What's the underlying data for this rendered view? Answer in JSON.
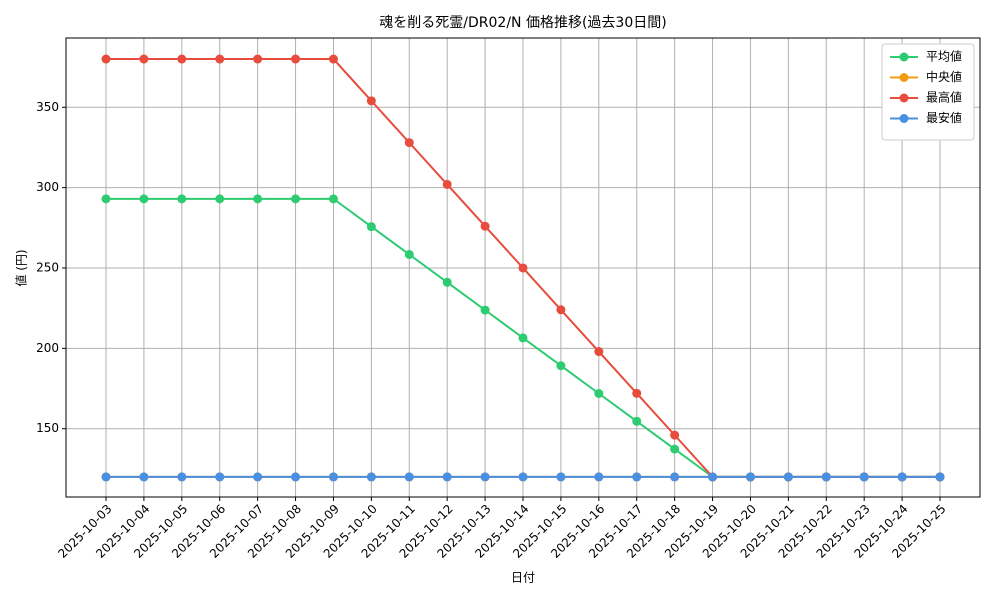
{
  "chart_data": {
    "type": "line",
    "title": "魂を削る死霊/DR02/N 価格推移(過去30日間)",
    "xlabel": "日付",
    "ylabel": "値 (円)",
    "categories": [
      "2025-10-03",
      "2025-10-04",
      "2025-10-05",
      "2025-10-06",
      "2025-10-07",
      "2025-10-08",
      "2025-10-09",
      "2025-10-10",
      "2025-10-11",
      "2025-10-12",
      "2025-10-13",
      "2025-10-14",
      "2025-10-15",
      "2025-10-16",
      "2025-10-17",
      "2025-10-18",
      "2025-10-19",
      "2025-10-20",
      "2025-10-21",
      "2025-10-22",
      "2025-10-23",
      "2025-10-24",
      "2025-10-25"
    ],
    "series": [
      {
        "name": "平均値",
        "color": "#2ecc71",
        "values": [
          293,
          293,
          293,
          293,
          293,
          293,
          293,
          275.7,
          258.4,
          241.1,
          223.8,
          206.5,
          189.2,
          171.9,
          154.6,
          137.3,
          120,
          120,
          120,
          120,
          120,
          120,
          120
        ]
      },
      {
        "name": "中央値",
        "color": "#f39c12",
        "values": [
          120,
          120,
          120,
          120,
          120,
          120,
          120,
          120,
          120,
          120,
          120,
          120,
          120,
          120,
          120,
          120,
          120,
          120,
          120,
          120,
          120,
          120,
          120
        ]
      },
      {
        "name": "最高値",
        "color": "#e74c3c",
        "values": [
          380,
          380,
          380,
          380,
          380,
          380,
          380,
          354,
          328,
          302,
          276,
          250,
          224,
          198,
          172,
          146,
          120,
          120,
          120,
          120,
          120,
          120,
          120
        ]
      },
      {
        "name": "最安値",
        "color": "#4a90e2",
        "values": [
          120,
          120,
          120,
          120,
          120,
          120,
          120,
          120,
          120,
          120,
          120,
          120,
          120,
          120,
          120,
          120,
          120,
          120,
          120,
          120,
          120,
          120,
          120
        ]
      }
    ],
    "ylim": [
      107.5,
      393.1
    ],
    "yticks": [
      150,
      200,
      250,
      300,
      350
    ],
    "grid": true,
    "legend": "upper right"
  }
}
